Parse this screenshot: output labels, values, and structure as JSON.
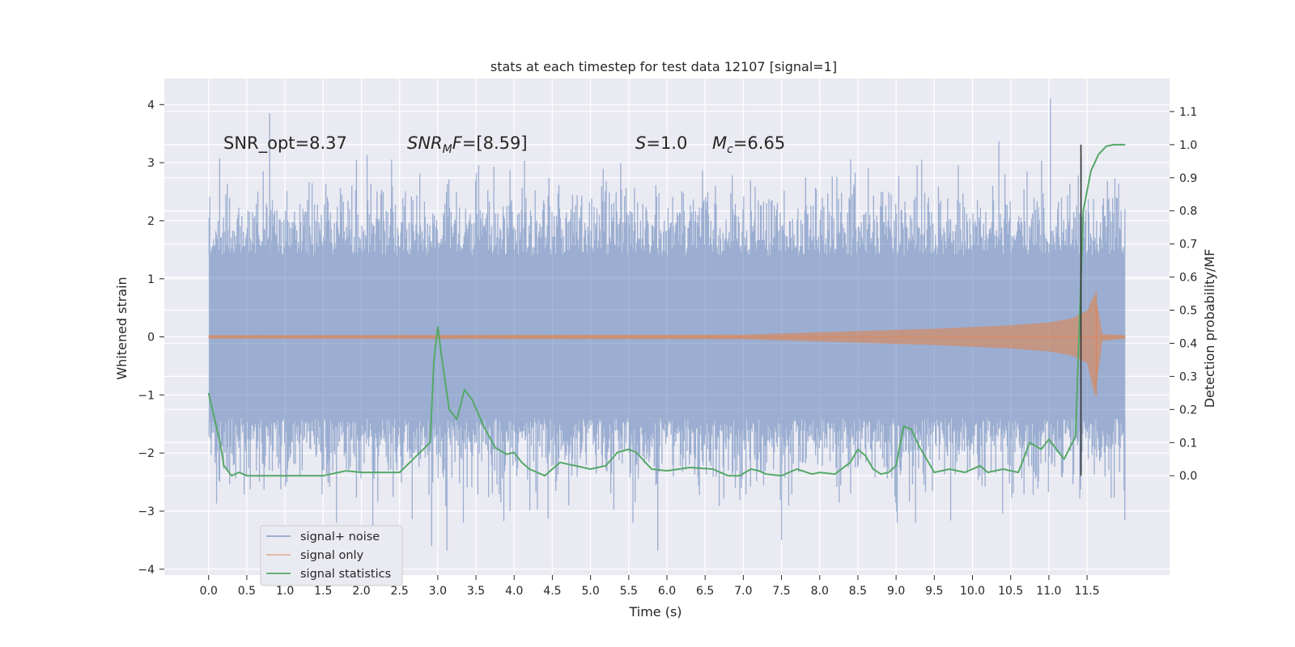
{
  "chart_data": {
    "type": "line",
    "title": "stats at each timestep for test data 12107 [signal=1]",
    "xlabel": "Time (s)",
    "ylabel": "Whitened strain",
    "y2label": "Detection probability/MF",
    "xlim": [
      -0.58,
      12.58
    ],
    "ylim": [
      -4.1,
      4.45
    ],
    "y2lim": [
      -0.3,
      1.2
    ],
    "xticks": [
      0.0,
      0.5,
      1.0,
      1.5,
      2.0,
      2.5,
      3.0,
      3.5,
      4.0,
      4.5,
      5.0,
      5.5,
      6.0,
      6.5,
      7.0,
      7.5,
      8.0,
      8.5,
      9.0,
      9.5,
      10.0,
      10.5,
      11.0,
      11.5
    ],
    "xtick_labels": [
      "0.0",
      "0.5",
      "1.0",
      "1.5",
      "2.0",
      "2.5",
      "3.0",
      "3.5",
      "4.0",
      "4.5",
      "5.0",
      "5.5",
      "6.0",
      "6.5",
      "7.0",
      "7.5",
      "8.0",
      "8.5",
      "9.0",
      "9.5",
      "10.0",
      "10.5",
      "11.0",
      "11.5"
    ],
    "yticks": [
      4,
      3,
      2,
      1,
      0,
      -1,
      -2,
      -3,
      -4
    ],
    "ytick_labels": [
      "4",
      "3",
      "2",
      "1",
      "0",
      "−1",
      "−2",
      "−3",
      "−4"
    ],
    "y2ticks": [
      1.1,
      1.0,
      0.9,
      0.8,
      0.7,
      0.6,
      0.5,
      0.4,
      0.3,
      0.2,
      0.1,
      0.0
    ],
    "y2tick_labels": [
      "1.1",
      "1.0",
      "0.9",
      "0.8",
      "0.7",
      "0.6",
      "0.5",
      "0.4",
      "0.3",
      "0.2",
      "0.1",
      "0.0"
    ],
    "grid": true,
    "legend_position": "lower-left",
    "annotations": {
      "snr_opt": "SNR_opt=8.37",
      "snr_mf_sym": "SNR",
      "snr_mf_sub": "M",
      "snr_mf_rest": "F=[8.59]",
      "s_sym": "S",
      "s_rest": "=1.0",
      "mc_sym": "M",
      "mc_sub": "c",
      "mc_rest": "=6.65"
    },
    "vline_x": 11.42,
    "series": [
      {
        "name": "signal+ noise",
        "color": "#4c72b0",
        "axis": "left",
        "time_range": [
          0.0,
          12.0
        ],
        "typical_peak": 1.4,
        "extreme_max": 4.1,
        "extreme_min": -3.7,
        "extreme_peaks": [
          {
            "x": 0.8,
            "y": 3.85
          },
          {
            "x": 11.02,
            "y": 4.1
          },
          {
            "x": 2.92,
            "y": -3.6
          },
          {
            "x": 3.12,
            "y": -3.68
          },
          {
            "x": 5.88,
            "y": -3.68
          },
          {
            "x": 7.5,
            "y": -3.5
          },
          {
            "x": 2.15,
            "y": -3.3
          }
        ]
      },
      {
        "name": "signal only",
        "color": "#dd8452",
        "axis": "left",
        "envelope": {
          "x": [
            0.0,
            7.0,
            7.5,
            8.0,
            8.5,
            9.0,
            9.5,
            10.0,
            10.5,
            11.0,
            11.3,
            11.5,
            11.6,
            11.65,
            11.7,
            12.0
          ],
          "amplitude": [
            0.03,
            0.04,
            0.06,
            0.08,
            0.1,
            0.12,
            0.14,
            0.17,
            0.2,
            0.25,
            0.32,
            0.45,
            0.75,
            0.45,
            0.05,
            0.03
          ]
        },
        "peak_values": {
          "max": 0.78,
          "min": -1.02
        }
      },
      {
        "name": "signal statistics",
        "color": "#55a868",
        "axis": "right",
        "x": [
          0.0,
          0.1,
          0.15,
          0.2,
          0.3,
          0.4,
          0.5,
          0.7,
          1.0,
          1.5,
          1.8,
          2.0,
          2.5,
          2.9,
          2.95,
          3.0,
          3.05,
          3.15,
          3.25,
          3.35,
          3.45,
          3.6,
          3.75,
          3.9,
          4.0,
          4.1,
          4.2,
          4.4,
          4.6,
          4.8,
          5.0,
          5.2,
          5.35,
          5.5,
          5.6,
          5.8,
          6.0,
          6.3,
          6.6,
          6.8,
          6.95,
          7.1,
          7.2,
          7.3,
          7.5,
          7.7,
          7.9,
          8.0,
          8.2,
          8.4,
          8.5,
          8.6,
          8.7,
          8.8,
          8.9,
          9.0,
          9.1,
          9.2,
          9.3,
          9.5,
          9.7,
          9.9,
          10.1,
          10.2,
          10.4,
          10.6,
          10.75,
          10.9,
          11.0,
          11.1,
          11.2,
          11.35,
          11.45,
          11.55,
          11.65,
          11.75,
          11.85,
          12.0
        ],
        "values": [
          0.25,
          0.15,
          0.1,
          0.03,
          0.0,
          0.01,
          0.0,
          0.0,
          0.0,
          0.0,
          0.015,
          0.01,
          0.01,
          0.1,
          0.35,
          0.45,
          0.36,
          0.2,
          0.17,
          0.26,
          0.23,
          0.15,
          0.085,
          0.065,
          0.07,
          0.04,
          0.02,
          0.0,
          0.04,
          0.03,
          0.02,
          0.03,
          0.07,
          0.08,
          0.07,
          0.02,
          0.015,
          0.025,
          0.02,
          0.0,
          0.0,
          0.02,
          0.015,
          0.005,
          0.0,
          0.02,
          0.005,
          0.01,
          0.005,
          0.04,
          0.08,
          0.06,
          0.02,
          0.005,
          0.01,
          0.03,
          0.15,
          0.14,
          0.09,
          0.01,
          0.02,
          0.01,
          0.03,
          0.01,
          0.02,
          0.01,
          0.1,
          0.08,
          0.11,
          0.08,
          0.05,
          0.12,
          0.8,
          0.92,
          0.97,
          0.995,
          1.0,
          1.0
        ]
      }
    ]
  }
}
